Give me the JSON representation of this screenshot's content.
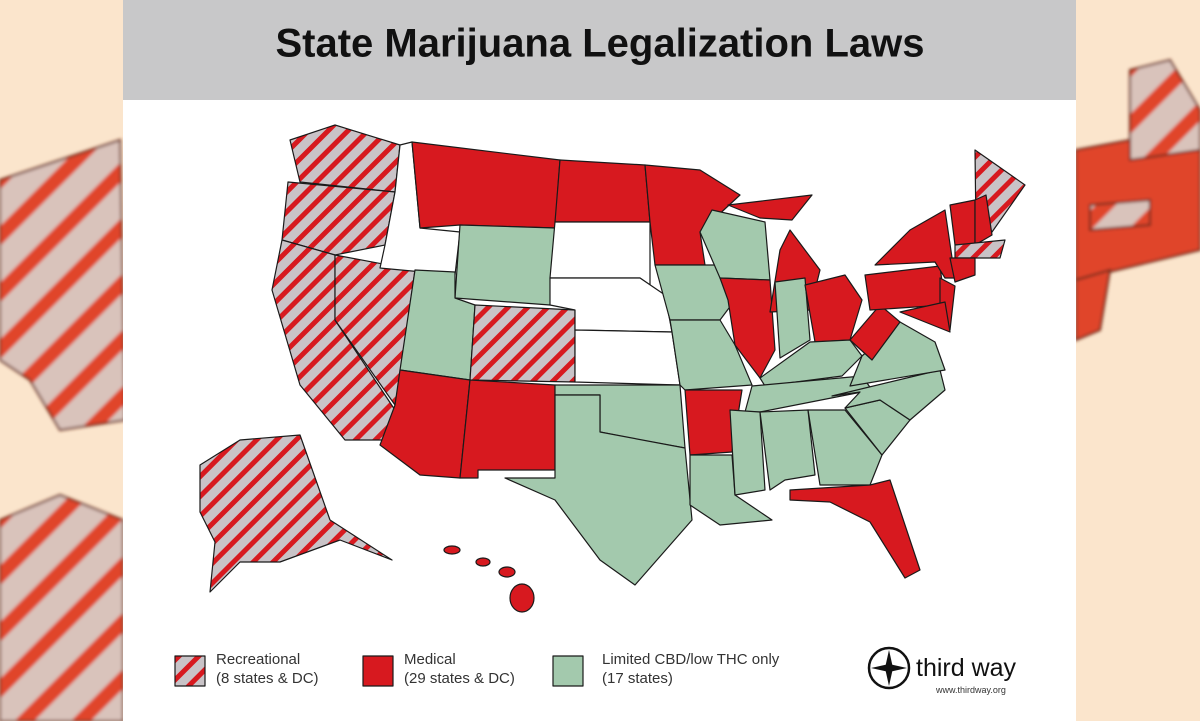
{
  "header": {
    "title": "State Marijuana Legalization Laws"
  },
  "legend": [
    {
      "label": "Recreational",
      "detail": "(8 states & DC)"
    },
    {
      "label": "Medical",
      "detail": "(29 states & DC)"
    },
    {
      "label": "Limited CBD/low THC only",
      "detail": "(17 states)"
    }
  ],
  "logo": {
    "name": "third way",
    "url": "www.thirdway.org"
  }
}
